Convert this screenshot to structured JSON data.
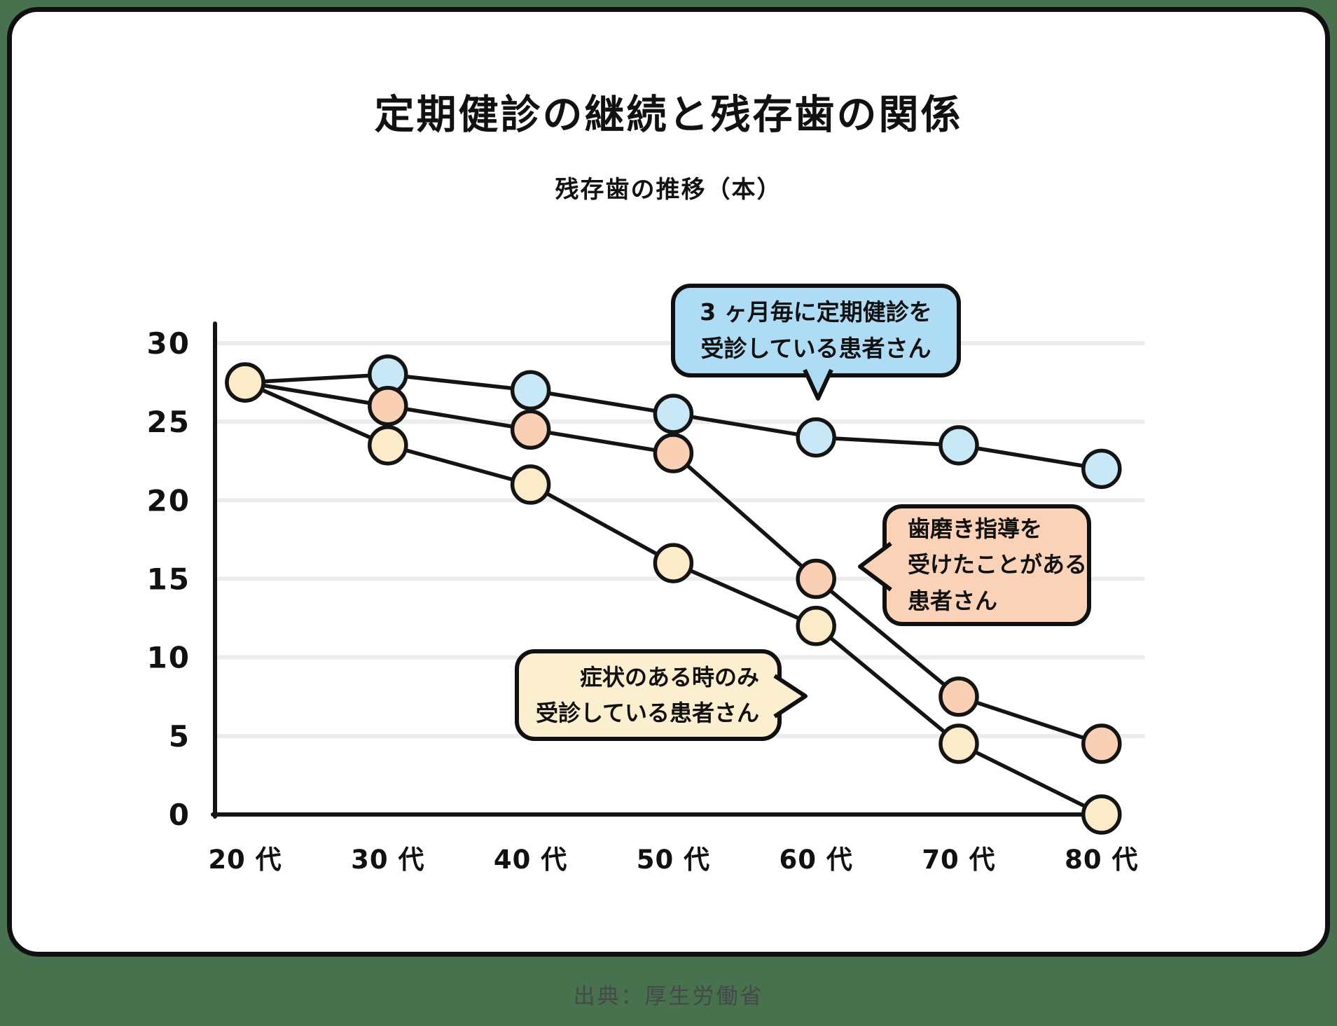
{
  "title": "定期健診の継続と残存歯の関係",
  "subtitle": "残存歯の推移（本）",
  "footer": {
    "source": "出典：厚生労働省"
  },
  "colors": {
    "page_background": "#48714D",
    "card_background": "#FFFFFF",
    "line_black": "#141414",
    "grid_gray": "#ECECEC",
    "series_blue": "#C8E8F8",
    "series_peach": "#FAD0B5",
    "series_cream": "#FCEBC8",
    "callout_blue_bg": "#AEDCF4",
    "callout_peach_bg": "#FAD2B8",
    "callout_cream_bg": "#FCEFCF"
  },
  "chart_data": {
    "type": "line",
    "categories": [
      "20 代",
      "30 代",
      "40 代",
      "50 代",
      "60 代",
      "70 代",
      "80 代"
    ],
    "series": [
      {
        "name": "3ヶ月毎に定期健診を受診している患者さん",
        "color_key": "series_blue",
        "values": [
          27.5,
          28,
          27,
          25.5,
          24,
          23.5,
          22
        ]
      },
      {
        "name": "歯磨き指導を受けたことがある患者さん",
        "color_key": "series_peach",
        "values": [
          27.5,
          26,
          24.5,
          23,
          15,
          7.5,
          4.5
        ]
      },
      {
        "name": "症状のある時のみ受診している患者さん",
        "color_key": "series_cream",
        "values": [
          27.5,
          23.5,
          21,
          16,
          12,
          4.5,
          0
        ]
      }
    ],
    "yticks": [
      30,
      25,
      20,
      15,
      10,
      5,
      0
    ],
    "ylim": [
      0,
      30
    ],
    "xlabel": "",
    "ylabel": "残存歯の推移（本）",
    "grid": true,
    "legend_position": "callouts-on-chart"
  },
  "annotations": [
    {
      "id": "regular-checkup",
      "lines": [
        "3 ヶ月毎に定期健診を",
        "受診している患者さん"
      ]
    },
    {
      "id": "brushing-guidance",
      "lines": [
        "歯磨き指導を",
        "受けたことがある",
        "患者さん"
      ]
    },
    {
      "id": "symptom-only",
      "lines": [
        "症状のある時のみ",
        "受診している患者さん"
      ]
    }
  ]
}
